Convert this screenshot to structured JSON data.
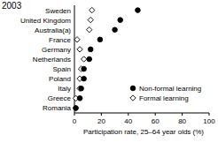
{
  "chart_data": {
    "type": "dot",
    "title": "2003",
    "orientation": "horizontal",
    "categories": [
      "Sweden",
      "United Kingdom",
      "Australia(a)",
      "France",
      "Germany",
      "Netherlands",
      "Spain",
      "Poland",
      "Italy",
      "Greece",
      "Romania"
    ],
    "series": [
      {
        "name": "Non-formal learning",
        "color": "#000000",
        "marker": "circle",
        "values": [
          47,
          34,
          30,
          19,
          12,
          11,
          7,
          7,
          5,
          4,
          1
        ]
      },
      {
        "name": "Formal learning",
        "color": "#000000",
        "marker": "open-diamond",
        "values": [
          13,
          12,
          11,
          2,
          4,
          7,
          5,
          4,
          4,
          1,
          1
        ]
      }
    ],
    "x_label": "Participation rate, 25–64 year olds (%)",
    "xlim": [
      0,
      100
    ],
    "xticks": [
      0,
      20,
      40,
      60,
      80,
      100
    ],
    "grid": false,
    "legend": "lower right"
  }
}
